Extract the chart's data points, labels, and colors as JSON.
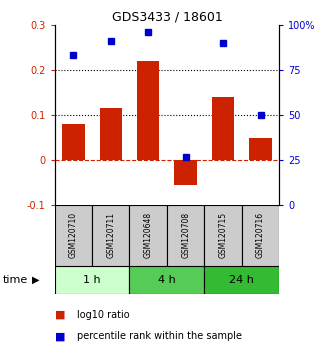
{
  "title": "GDS3433 / 18601",
  "samples": [
    "GSM120710",
    "GSM120711",
    "GSM120648",
    "GSM120708",
    "GSM120715",
    "GSM120716"
  ],
  "log10_ratio": [
    0.08,
    0.115,
    0.22,
    -0.055,
    0.14,
    0.05
  ],
  "percentile_rank": [
    83,
    91,
    96,
    27,
    90,
    50
  ],
  "bar_color": "#cc2200",
  "dot_color": "#0000cc",
  "left_ylim": [
    -0.1,
    0.3
  ],
  "right_ylim": [
    0,
    100
  ],
  "left_yticks": [
    -0.1,
    0.0,
    0.1,
    0.2,
    0.3
  ],
  "right_yticks": [
    0,
    25,
    50,
    75,
    100
  ],
  "right_yticklabels": [
    "0",
    "25",
    "50",
    "75",
    "100%"
  ],
  "dotted_lines": [
    0.1,
    0.2
  ],
  "zero_line_color": "#cc2200",
  "groups": [
    {
      "label": "1 h",
      "indices": [
        0,
        1
      ],
      "color": "#ccffcc"
    },
    {
      "label": "4 h",
      "indices": [
        2,
        3
      ],
      "color": "#55cc55"
    },
    {
      "label": "24 h",
      "indices": [
        4,
        5
      ],
      "color": "#33bb33"
    }
  ],
  "time_label": "time",
  "legend_bar_label": "log10 ratio",
  "legend_dot_label": "percentile rank within the sample",
  "background_color": "#ffffff",
  "sample_box_color": "#cccccc"
}
